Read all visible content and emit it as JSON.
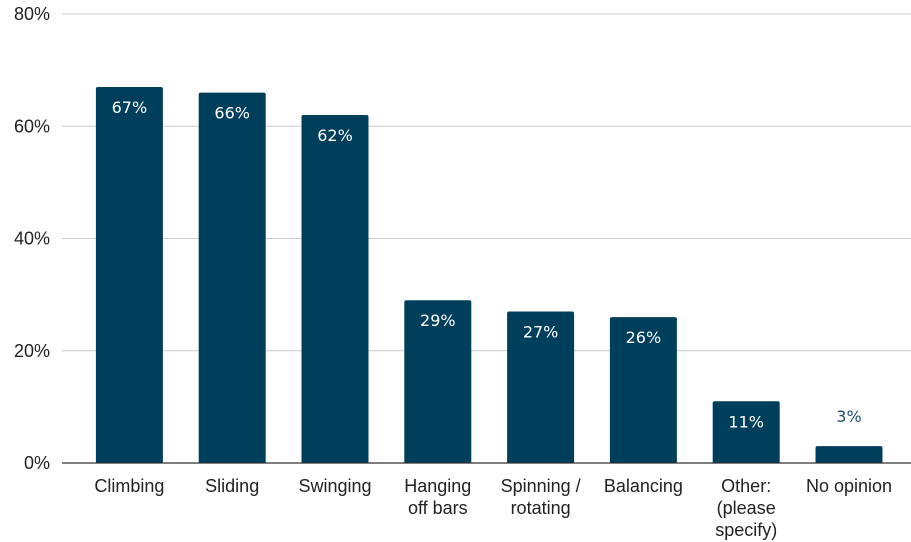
{
  "chart_data": {
    "type": "bar",
    "categories": [
      "Climbing",
      "Sliding",
      "Swinging",
      "Hanging off bars",
      "Spinning / rotating",
      "Balancing",
      "Other: (please specify)",
      "No opinion"
    ],
    "category_lines": [
      [
        "Climbing"
      ],
      [
        "Sliding"
      ],
      [
        "Swinging"
      ],
      [
        "Hanging",
        "off bars"
      ],
      [
        "Spinning /",
        "rotating"
      ],
      [
        "Balancing"
      ],
      [
        "Other:",
        "(please",
        "specify)"
      ],
      [
        "No opinion"
      ]
    ],
    "values": [
      67,
      66,
      62,
      29,
      27,
      26,
      11,
      3
    ],
    "value_labels": [
      "67%",
      "66%",
      "62%",
      "29%",
      "27%",
      "26%",
      "11%",
      "3%"
    ],
    "y_ticks": [
      0,
      20,
      40,
      60,
      80
    ],
    "y_tick_labels": [
      "0%",
      "20%",
      "40%",
      "60%",
      "80%"
    ],
    "ylim": [
      0,
      80
    ],
    "grid": true,
    "legend": "none",
    "colors": {
      "bar": "#003f5c",
      "label_inside": "#ffffff",
      "label_outside": "#1f4e6e"
    }
  }
}
